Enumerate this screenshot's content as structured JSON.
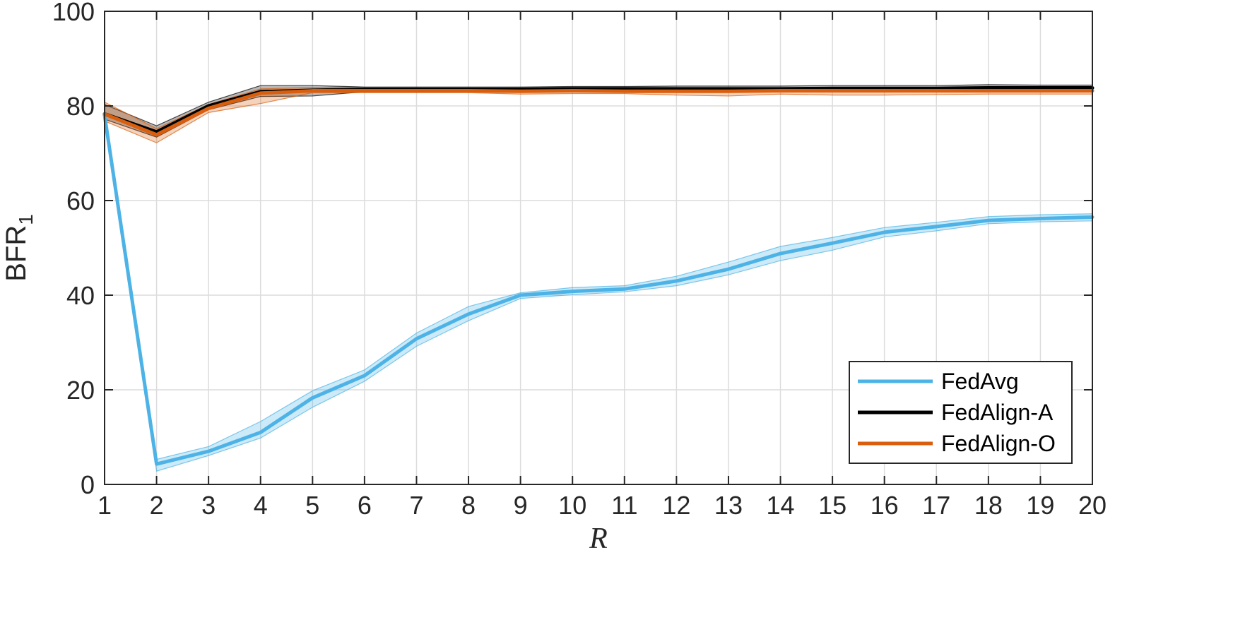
{
  "chart_data": {
    "type": "line",
    "xlabel": "R",
    "ylabel": "BFR",
    "ylabel_subscript": "1",
    "xlim": [
      1,
      20
    ],
    "ylim": [
      0,
      100
    ],
    "x": [
      1,
      2,
      3,
      4,
      5,
      6,
      7,
      8,
      9,
      10,
      11,
      12,
      13,
      14,
      15,
      16,
      17,
      18,
      19,
      20
    ],
    "xticks": [
      1,
      2,
      3,
      4,
      5,
      6,
      7,
      8,
      9,
      10,
      11,
      12,
      13,
      14,
      15,
      16,
      17,
      18,
      19,
      20
    ],
    "yticks": [
      0,
      20,
      40,
      60,
      80,
      100
    ],
    "grid": true,
    "legend_position": "bottom-right",
    "series": [
      {
        "name": "FedAvg",
        "color": "#4DB3E6",
        "values": [
          78.0,
          4.3,
          7.0,
          11.0,
          18.3,
          23.0,
          30.8,
          36.0,
          40.0,
          40.8,
          41.3,
          43.0,
          45.5,
          48.8,
          51.0,
          53.3,
          54.5,
          55.8,
          56.2,
          56.5
        ],
        "upper": [
          78.6,
          5.3,
          8.0,
          13.3,
          19.8,
          24.2,
          32.0,
          37.6,
          40.5,
          41.6,
          42.0,
          44.0,
          47.0,
          50.3,
          52.2,
          54.3,
          55.4,
          56.6,
          57.0,
          57.2
        ],
        "lower": [
          77.4,
          2.8,
          6.1,
          9.8,
          16.3,
          21.8,
          29.2,
          34.6,
          39.3,
          40.1,
          40.7,
          42.0,
          44.3,
          47.3,
          49.5,
          52.3,
          53.6,
          55.1,
          55.5,
          55.7
        ]
      },
      {
        "name": "FedAlign-A",
        "color": "#000000",
        "values": [
          78.3,
          74.5,
          80.0,
          83.0,
          83.3,
          83.5,
          83.5,
          83.5,
          83.5,
          83.6,
          83.6,
          83.6,
          83.6,
          83.6,
          83.7,
          83.7,
          83.7,
          83.8,
          83.8,
          83.8
        ],
        "upper": [
          80.3,
          75.8,
          80.8,
          84.3,
          84.3,
          84.0,
          84.0,
          84.0,
          84.0,
          84.1,
          84.1,
          84.2,
          84.2,
          84.2,
          84.3,
          84.3,
          84.3,
          84.5,
          84.4,
          84.4
        ],
        "lower": [
          77.2,
          73.4,
          79.2,
          82.0,
          82.1,
          83.0,
          83.0,
          83.0,
          83.0,
          83.1,
          83.1,
          83.0,
          83.0,
          83.1,
          83.1,
          83.1,
          83.1,
          83.2,
          83.2,
          83.2
        ]
      },
      {
        "name": "FedAlign-O",
        "color": "#D95F0E",
        "values": [
          78.3,
          73.9,
          79.5,
          82.7,
          83.2,
          83.2,
          83.2,
          83.2,
          83.1,
          83.2,
          83.1,
          83.1,
          83.1,
          83.2,
          83.2,
          83.2,
          83.2,
          83.2,
          83.2,
          83.2
        ],
        "upper": [
          80.8,
          75.2,
          80.3,
          83.6,
          83.9,
          83.8,
          83.7,
          83.7,
          83.6,
          83.7,
          83.6,
          83.6,
          83.6,
          83.7,
          83.7,
          83.7,
          83.7,
          83.7,
          83.7,
          83.7
        ],
        "lower": [
          76.8,
          72.2,
          78.6,
          80.5,
          82.8,
          82.8,
          82.8,
          82.8,
          82.5,
          82.6,
          82.6,
          82.3,
          82.1,
          82.5,
          82.3,
          82.3,
          82.4,
          82.5,
          82.5,
          82.5
        ]
      }
    ]
  }
}
